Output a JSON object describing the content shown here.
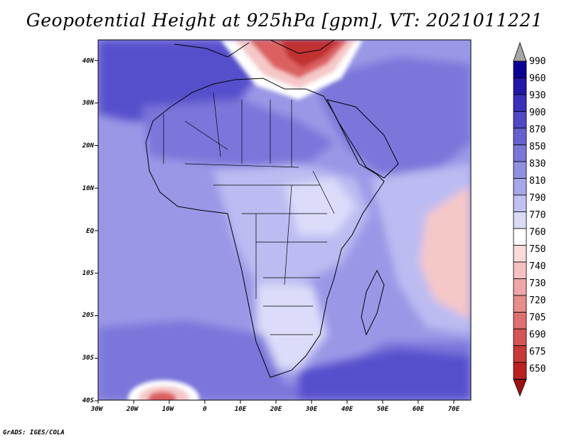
{
  "title": "Geopotential Height at 925hPa [gpm], VT: 2021011221",
  "credit": "GrADS: IGES/COLA",
  "axes": {
    "lon_labels": [
      "30W",
      "20W",
      "10W",
      "0",
      "10E",
      "20E",
      "30E",
      "40E",
      "50E",
      "60E",
      "70E"
    ],
    "lat_labels": [
      "40N",
      "30N",
      "20N",
      "10N",
      "EQ",
      "10S",
      "20S",
      "30S",
      "40S"
    ]
  },
  "legend": {
    "levels": [
      "990",
      "960",
      "930",
      "900",
      "870",
      "850",
      "830",
      "810",
      "790",
      "770",
      "760",
      "750",
      "740",
      "730",
      "720",
      "705",
      "690",
      "675",
      "650"
    ],
    "colors": [
      "#0d0096",
      "#2416aa",
      "#3a30bb",
      "#5048c6",
      "#6660d0",
      "#7a76da",
      "#9090e2",
      "#a6a6ea",
      "#c0c0f2",
      "#dadaf8",
      "#ffffff",
      "#fadada",
      "#f5c0c0",
      "#f0a6a6",
      "#e88c8c",
      "#e07070",
      "#d65454",
      "#ca3838",
      "#bc2020"
    ],
    "top_arrow_color": "#a6a6a6",
    "bottom_arrow_color": "#a01010"
  },
  "map_colors": {
    "base": "#9a98e6",
    "deep": "#5650cc",
    "mid": "#7a76da",
    "light": "#bcbcf2",
    "pale": "#dcdcfa",
    "white": "#ffffff",
    "pink": "#f5c8c8",
    "red": "#dc6060",
    "darkred": "#c03030",
    "land_line": "#000000"
  }
}
